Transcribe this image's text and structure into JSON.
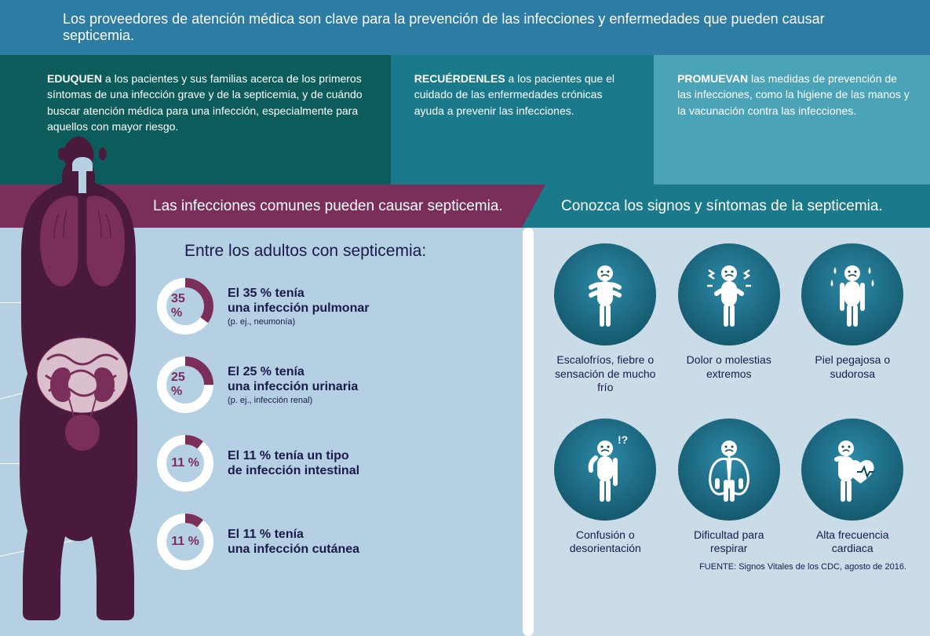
{
  "header": {
    "text": "Los proveedores de atención médica son clave para la prevención de las infecciones y enfermedades que pueden causar septicemia."
  },
  "columns": [
    {
      "bold": "EDUQUEN",
      "rest": " a los pacientes y sus familias acerca de los primeros síntomas de una infección grave y de la septicemia, y de cuándo buscar atención médica para una infección, especialmente para aquellos con mayor riesgo.",
      "bg": "#0d5c5c"
    },
    {
      "bold": "RECUÉRDENLES",
      "rest": " a los pacientes que el cuidado de las enfermedades crónicas ayuda a prevenir las infecciones.",
      "bg": "#1a7a8c"
    },
    {
      "bold": "PROMUEVAN",
      "rest": " las medidas de prevención de las infecciones, como la higiene de las manos y la vacunación contra las infecciones.",
      "bg": "#4ba3b8"
    }
  ],
  "midHeaders": {
    "left": "Las infecciones comunes pueden causar septicemia.",
    "right": "Conozca los signos y síntomas de la septicemia.",
    "leftBg": "#7a2e5a",
    "rightBg": "#1a7a8c"
  },
  "statsTitle": "Entre los adultos con septicemia:",
  "donut": {
    "track": "#ffffff",
    "fill": "#7a2e5a",
    "radius": 30,
    "strokeWidth": 12
  },
  "stats": [
    {
      "pct": 35,
      "pctLabel": "35 %",
      "l1": "El 35 % tenía",
      "l2": "una infección pulmonar",
      "sub": "(p. ej., neumonía)"
    },
    {
      "pct": 25,
      "pctLabel": "25 %",
      "l1": "El 25 % tenía",
      "l2": "una infección urinaria",
      "sub": "(p. ej., infección renal)"
    },
    {
      "pct": 11,
      "pctLabel": "11 %",
      "l1": "El 11 % tenía un tipo",
      "l2": "de infección intestinal",
      "sub": ""
    },
    {
      "pct": 11,
      "pctLabel": "11 %",
      "l1": "El 11 % tenía",
      "l2": "una infección cutánea",
      "sub": ""
    }
  ],
  "symptoms": [
    {
      "label": "Escalofríos, fiebre o sensación de mucho frío",
      "icon": "chills"
    },
    {
      "label": "Dolor o molestias extremos",
      "icon": "pain"
    },
    {
      "label": "Piel pegajosa o sudorosa",
      "icon": "clammy"
    },
    {
      "label": "Confusión o desorientación",
      "icon": "confusion"
    },
    {
      "label": "Dificultad para respirar",
      "icon": "breath"
    },
    {
      "label": "Alta frecuencia cardiaca",
      "icon": "heart"
    }
  ],
  "source": "FUENTE: Signos Vitales de los CDC, agosto de 2016.",
  "colors": {
    "headerBg": "#2d7ca3",
    "leftPanelBg": "#b5cfe3",
    "rightPanelBg": "#c9dce8",
    "textDark": "#1a1a4a",
    "bodyFill": "#4a1a3d",
    "organFill": "#7a2e5a",
    "symptomCircleInner": "#2d8aa8",
    "symptomCircleOuter": "#0d4a5c"
  }
}
